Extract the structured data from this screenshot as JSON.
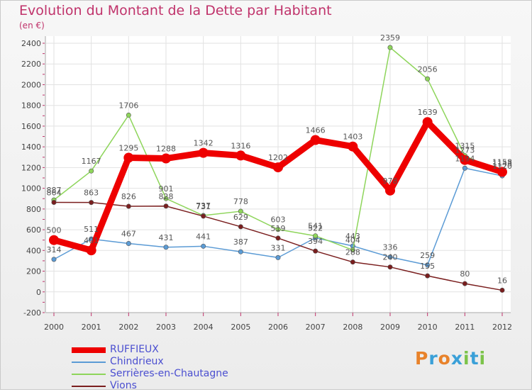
{
  "header": {
    "title": "Evolution du Montant de la Dette par Habitant",
    "subtitle": "(en €)"
  },
  "logo": {
    "text": "Proxiti",
    "letters": [
      {
        "ch": "P",
        "color": "#e8822a"
      },
      {
        "ch": "r",
        "color": "#3aa0d8"
      },
      {
        "ch": "o",
        "color": "#e8822a"
      },
      {
        "ch": "x",
        "color": "#3aa0d8"
      },
      {
        "ch": "i",
        "color": "#7cc34a"
      },
      {
        "ch": "t",
        "color": "#3aa0d8"
      },
      {
        "ch": "i",
        "color": "#7cc34a"
      }
    ]
  },
  "chart_data": {
    "type": "line",
    "x": [
      "2000",
      "2001",
      "2002",
      "2003",
      "2004",
      "2005",
      "2006",
      "2007",
      "2008",
      "2009",
      "2010",
      "2011",
      "2012"
    ],
    "ylim": [
      -200,
      2400
    ],
    "yticks": [
      -200,
      0,
      200,
      400,
      600,
      800,
      1000,
      1200,
      1400,
      1600,
      1800,
      2000,
      2200,
      2400
    ],
    "grid": true,
    "legend_position": "bottom-left",
    "series": [
      {
        "name": "RUFFIEUX",
        "color": "#ee0000",
        "values": [
          500,
          401,
          1295,
          1288,
          1342,
          1316,
          1202,
          1466,
          1403,
          978,
          1639,
          1273,
          1158
        ],
        "labels": [
          "500",
          "401",
          "1295",
          "1288",
          "1342",
          "1316",
          "1202",
          "1466",
          "1403",
          "978",
          "1639",
          "1273",
          "1158"
        ]
      },
      {
        "name": "Chindrieux",
        "color": "#5b9bd5",
        "values": [
          314,
          511,
          467,
          431,
          441,
          387,
          331,
          522,
          443,
          336,
          259,
          1194,
          1120
        ],
        "labels": [
          "314",
          "511",
          "467",
          "431",
          "441",
          "387",
          "331",
          "522",
          "443",
          "336",
          "259",
          "1194",
          "1120"
        ]
      },
      {
        "name": "Serrières-en-Chautagne",
        "color": "#8ed55b",
        "values": [
          887,
          1167,
          1706,
          901,
          737,
          778,
          603,
          541,
          404,
          2359,
          2056,
          1315,
          1143
        ],
        "labels": [
          "887",
          "1167",
          "1706",
          "901",
          "737",
          "778",
          "603",
          "541",
          "404",
          "2359",
          "2056",
          "1315",
          "1143"
        ]
      },
      {
        "name": "Vions",
        "color": "#7a1e1e",
        "values": [
          864,
          863,
          826,
          828,
          731,
          629,
          519,
          394,
          288,
          240,
          155,
          80,
          16
        ],
        "labels": [
          "864",
          "863",
          "826",
          "828",
          "731",
          "629",
          "519",
          "394",
          "288",
          "240",
          "155",
          "80",
          "16"
        ]
      }
    ]
  }
}
